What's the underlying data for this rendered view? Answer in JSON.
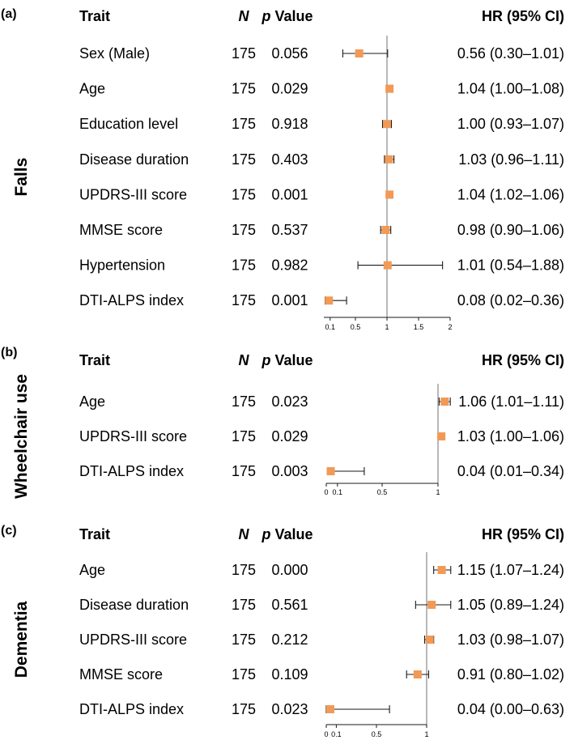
{
  "header": {
    "trait": "Trait",
    "n": "N",
    "p_italic": "p",
    "p_rest": " Value",
    "hr": "HR (95% CI)"
  },
  "colors": {
    "marker": "#f29a55",
    "refline": "#888888",
    "whisker": "#1a1a1a"
  },
  "chart_data": [
    {
      "type": "forest",
      "panel_label": "(a)",
      "group": "Falls",
      "xlim": [
        0,
        2
      ],
      "xticks": [
        0.1,
        0.5,
        1,
        1.5,
        2
      ],
      "tick_labels": [
        "0.1",
        "0.5",
        "1",
        "1.5",
        "2"
      ],
      "ref": 1,
      "rows": [
        {
          "trait": "Sex (Male)",
          "n": "175",
          "p": "0.056",
          "hr": 0.56,
          "lo": 0.3,
          "hi": 1.01,
          "hr_text": "0.56 (0.30–1.01)"
        },
        {
          "trait": "Age",
          "n": "175",
          "p": "0.029",
          "hr": 1.04,
          "lo": 1.0,
          "hi": 1.08,
          "hr_text": "1.04 (1.00–1.08)"
        },
        {
          "trait": "Education level",
          "n": "175",
          "p": "0.918",
          "hr": 1.0,
          "lo": 0.93,
          "hi": 1.07,
          "hr_text": "1.00 (0.93–1.07)"
        },
        {
          "trait": "Disease duration",
          "n": "175",
          "p": "0.403",
          "hr": 1.03,
          "lo": 0.96,
          "hi": 1.11,
          "hr_text": "1.03 (0.96–1.11)"
        },
        {
          "trait": "UPDRS-III score",
          "n": "175",
          "p": "0.001",
          "hr": 1.04,
          "lo": 1.02,
          "hi": 1.06,
          "hr_text": "1.04 (1.02–1.06)"
        },
        {
          "trait": "MMSE score",
          "n": "175",
          "p": "0.537",
          "hr": 0.98,
          "lo": 0.9,
          "hi": 1.06,
          "hr_text": "0.98 (0.90–1.06)"
        },
        {
          "trait": "Hypertension",
          "n": "175",
          "p": "0.982",
          "hr": 1.01,
          "lo": 0.54,
          "hi": 1.88,
          "hr_text": "1.01 (0.54–1.88)"
        },
        {
          "trait": "DTI-ALPS index",
          "n": "175",
          "p": "0.001",
          "hr": 0.08,
          "lo": 0.02,
          "hi": 0.36,
          "hr_text": "0.08 (0.02–0.36)"
        }
      ]
    },
    {
      "type": "forest",
      "panel_label": "(b)",
      "group": "Wheelchair use",
      "xlim": [
        0,
        1
      ],
      "xticks": [
        0,
        0.1,
        0.5,
        1
      ],
      "tick_labels": [
        "0",
        "0.1",
        "0.5",
        "1"
      ],
      "ref": 1,
      "rows": [
        {
          "trait": "Age",
          "n": "175",
          "p": "0.023",
          "hr": 1.06,
          "lo": 1.01,
          "hi": 1.11,
          "hr_text": "1.06 (1.01–1.11)"
        },
        {
          "trait": "UPDRS-III score",
          "n": "175",
          "p": "0.029",
          "hr": 1.03,
          "lo": 1.0,
          "hi": 1.06,
          "hr_text": "1.03 (1.00–1.06)"
        },
        {
          "trait": "DTI-ALPS index",
          "n": "175",
          "p": "0.003",
          "hr": 0.04,
          "lo": 0.01,
          "hi": 0.34,
          "hr_text": "0.04 (0.01–0.34)"
        }
      ]
    },
    {
      "type": "forest",
      "panel_label": "(c)",
      "group": "Dementia",
      "xlim": [
        0,
        1
      ],
      "xticks": [
        0,
        0.1,
        0.5,
        1
      ],
      "tick_labels": [
        "0",
        "0.1",
        "0.5",
        "1"
      ],
      "ref": 1,
      "rows": [
        {
          "trait": "Age",
          "n": "175",
          "p": "0.000",
          "hr": 1.15,
          "lo": 1.07,
          "hi": 1.24,
          "hr_text": "1.15 (1.07–1.24)"
        },
        {
          "trait": "Disease duration",
          "n": "175",
          "p": "0.561",
          "hr": 1.05,
          "lo": 0.89,
          "hi": 1.24,
          "hr_text": "1.05 (0.89–1.24)"
        },
        {
          "trait": "UPDRS-III score",
          "n": "175",
          "p": "0.212",
          "hr": 1.03,
          "lo": 0.98,
          "hi": 1.07,
          "hr_text": "1.03 (0.98–1.07)"
        },
        {
          "trait": "MMSE score",
          "n": "175",
          "p": "0.109",
          "hr": 0.91,
          "lo": 0.8,
          "hi": 1.02,
          "hr_text": "0.91 (0.80–1.02)"
        },
        {
          "trait": "DTI-ALPS index",
          "n": "175",
          "p": "0.023",
          "hr": 0.04,
          "lo": 0.0,
          "hi": 0.63,
          "hr_text": "0.04 (0.00–0.63)"
        }
      ]
    }
  ]
}
